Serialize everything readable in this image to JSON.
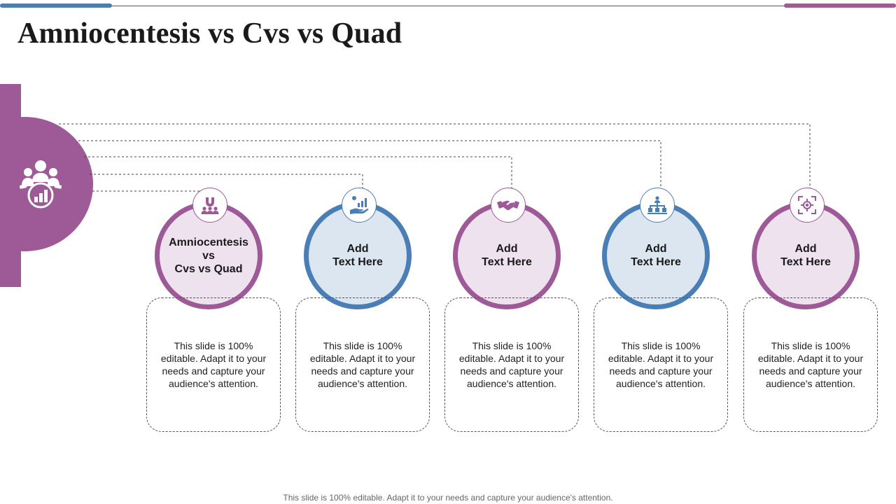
{
  "title": "Amniocentesis vs Cvs vs Quad",
  "hub": {
    "icon": "team-growth-icon",
    "color": "#9e5997"
  },
  "colors": {
    "purple": "#9e5997",
    "blue": "#4a7fb5",
    "purple_fill": "#efe2ef",
    "blue_fill": "#dce6f1"
  },
  "items": [
    {
      "label": "Amniocentesis\nvs\nCvs vs Quad",
      "description": "This slide is 100% editable. Adapt it to your needs and capture your audience's attention.",
      "icon": "magnet-people-icon",
      "color": "purple"
    },
    {
      "label": "Add\nText Here",
      "description": "This slide is 100% editable. Adapt it to your needs and capture your audience's attention.",
      "icon": "hand-growth-chart-icon",
      "color": "blue"
    },
    {
      "label": "Add\nText Here",
      "description": "This slide is 100% editable. Adapt it to your needs and capture your audience's attention.",
      "icon": "handshake-icon",
      "color": "purple"
    },
    {
      "label": "Add\nText Here",
      "description": "This slide is 100% editable. Adapt it to your needs and capture your audience's attention.",
      "icon": "org-chart-icon",
      "color": "blue"
    },
    {
      "label": "Add\nText Here",
      "description": "This slide is 100% editable. Adapt it to your needs and capture your audience's attention.",
      "icon": "target-gear-icon",
      "color": "purple"
    }
  ],
  "footer": "This slide is 100% editable. Adapt it to your needs and capture your audience's attention."
}
